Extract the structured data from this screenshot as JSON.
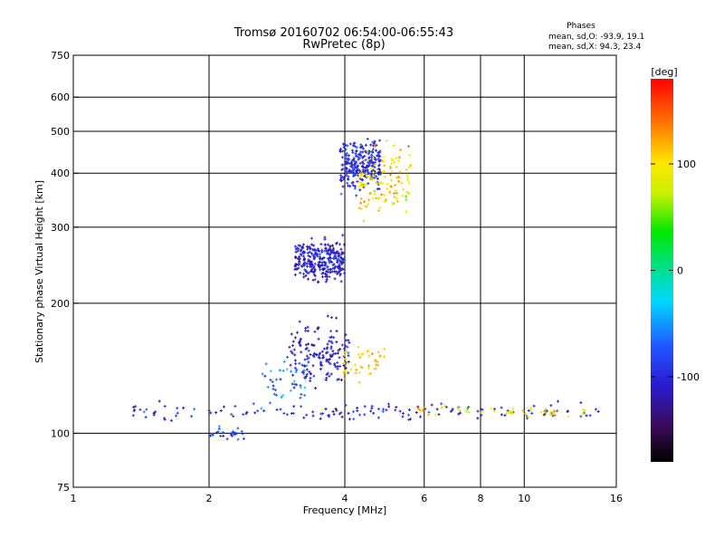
{
  "chart_data": {
    "type": "scatter",
    "title": "Tromsø 20160702 06:54:00-06:55:43",
    "subtitle": "RwPretec (8p)",
    "xlabel": "Frequency [MHz]",
    "ylabel": "Stationary phase Virtual Height [km]",
    "x_scale": "log",
    "y_scale": "log",
    "xlim": [
      1,
      16
    ],
    "ylim": [
      75,
      750
    ],
    "x_ticks": [
      {
        "value": 1,
        "label": "1"
      },
      {
        "value": 2,
        "label": "2"
      },
      {
        "value": 4,
        "label": "4"
      },
      {
        "value": 6,
        "label": "6"
      },
      {
        "value": 8,
        "label": "8"
      },
      {
        "value": 10,
        "label": "10"
      },
      {
        "value": 16,
        "label": "16"
      }
    ],
    "y_ticks": [
      {
        "value": 75,
        "label": "75"
      },
      {
        "value": 100,
        "label": "100"
      },
      {
        "value": 200,
        "label": "200"
      },
      {
        "value": 300,
        "label": "300"
      },
      {
        "value": 400,
        "label": "400"
      },
      {
        "value": 500,
        "label": "500"
      },
      {
        "value": 600,
        "label": "600"
      },
      {
        "value": 750,
        "label": "750"
      }
    ],
    "grid": true,
    "stats": {
      "heading": "Phases",
      "line_o": "mean, sd,O: -93.9, 19.1",
      "line_x": "mean, sd,X:  94.3, 23.4"
    },
    "colorbar": {
      "label": "[deg]",
      "range": [
        -180,
        180
      ],
      "ticks": [
        {
          "value": 100,
          "label": "100"
        },
        {
          "value": 0,
          "label": "0"
        },
        {
          "value": -100,
          "label": "-100"
        }
      ]
    },
    "clusters": [
      {
        "name": "E-layer trace",
        "x_range": [
          1.35,
          15
        ],
        "y_center": 112,
        "y_spread": 0.02,
        "phase": -100,
        "phase_sd": 20,
        "count": 150
      },
      {
        "name": "E-layer trace (X)",
        "x_range": [
          5.8,
          14
        ],
        "y_center": 112,
        "y_spread": 0.015,
        "phase": 100,
        "phase_sd": 25,
        "count": 45
      },
      {
        "name": "Low trace",
        "x_range": [
          2.0,
          2.4
        ],
        "y_center": 100,
        "y_spread": 0.015,
        "phase": -90,
        "phase_sd": 20,
        "count": 25
      },
      {
        "name": "Es trace",
        "x_range": [
          2.6,
          3.3
        ],
        "y_center": 132,
        "y_spread": 0.06,
        "phase": -60,
        "phase_sd": 25,
        "count": 40
      },
      {
        "name": "F1 cusp",
        "x_range": [
          3.0,
          4.1
        ],
        "y_center": 150,
        "y_spread": 0.08,
        "phase": -110,
        "phase_sd": 15,
        "count": 160
      },
      {
        "name": "F1 cusp (X)",
        "x_range": [
          3.9,
          4.9
        ],
        "y_center": 148,
        "y_spread": 0.05,
        "phase": 110,
        "phase_sd": 15,
        "count": 45
      },
      {
        "name": "F2 O-trace",
        "x_range": [
          3.1,
          4.0
        ],
        "y_center": 250,
        "y_spread": 0.05,
        "phase": -105,
        "phase_sd": 15,
        "count": 300
      },
      {
        "name": "F2 O-trace high",
        "x_range": [
          3.9,
          4.8
        ],
        "y_center": 420,
        "y_spread": 0.06,
        "phase": -100,
        "phase_sd": 15,
        "count": 260
      },
      {
        "name": "F2 X-trace",
        "x_range": [
          4.3,
          5.6
        ],
        "y_center": 380,
        "y_spread": 0.08,
        "phase": 100,
        "phase_sd": 20,
        "count": 120
      }
    ]
  }
}
